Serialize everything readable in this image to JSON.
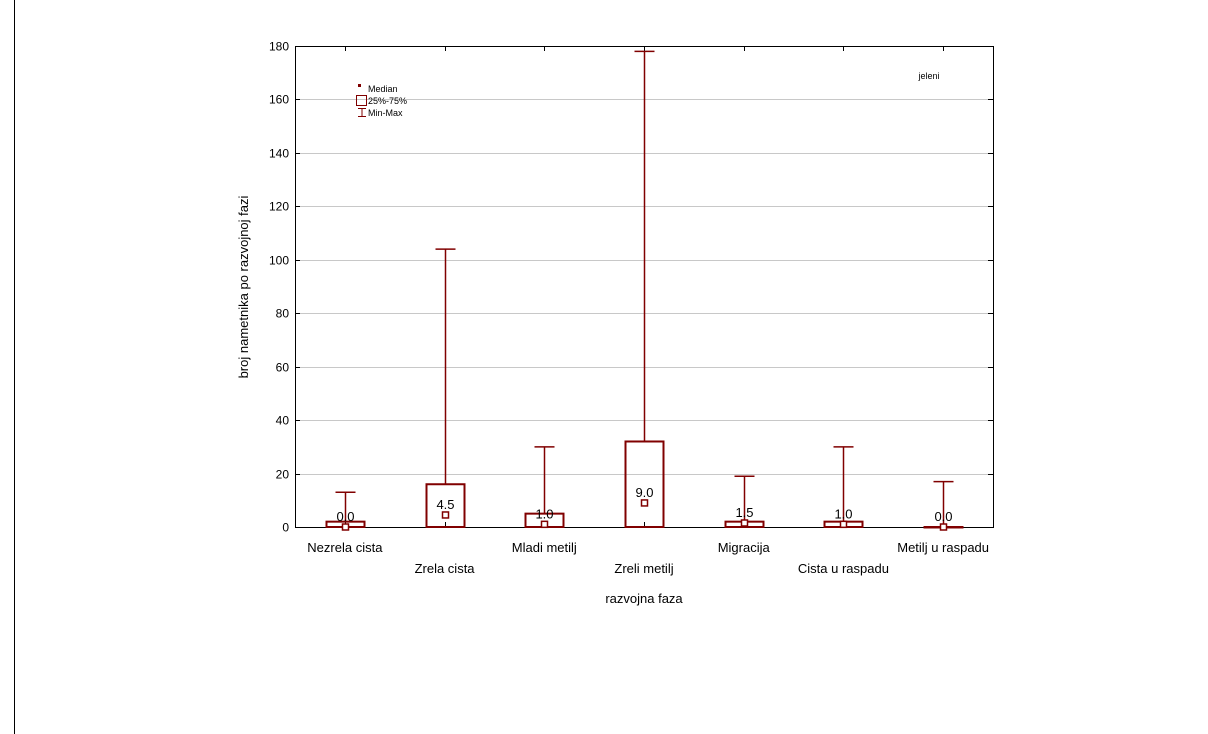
{
  "chart_data": {
    "type": "box",
    "xlabel": "razvojna faza",
    "ylabel": "broj nametnika po razvojnoj fazi",
    "ylim": [
      0,
      180
    ],
    "yticks": [
      0,
      20,
      40,
      60,
      80,
      100,
      120,
      140,
      160,
      180
    ],
    "grid": true,
    "annotation": "jeleni",
    "legend": {
      "position": "top-left",
      "entries": [
        "Median",
        "25%-75%",
        "Min-Max"
      ]
    },
    "colors": {
      "series": "#800000",
      "grid": "#c8c8c8",
      "axis": "#000000"
    },
    "categories": [
      "Nezrela cista",
      "Zrela cista",
      "Mladi metilj",
      "Zreli metilj",
      "Migracija",
      "Cista u raspadu",
      "Metilj u raspadu"
    ],
    "boxes": [
      {
        "category": "Nezrela cista",
        "min": 0,
        "q1": 0,
        "median": 0.0,
        "q3": 2,
        "max": 13,
        "median_label": "0.0"
      },
      {
        "category": "Zrela cista",
        "min": 0,
        "q1": 0,
        "median": 4.5,
        "q3": 16,
        "max": 104,
        "median_label": "4.5"
      },
      {
        "category": "Mladi metilj",
        "min": 0,
        "q1": 0,
        "median": 1.0,
        "q3": 5,
        "max": 30,
        "median_label": "1.0"
      },
      {
        "category": "Zreli metilj",
        "min": 0,
        "q1": 0,
        "median": 9.0,
        "q3": 32,
        "max": 178,
        "median_label": "9.0"
      },
      {
        "category": "Migracija",
        "min": 0,
        "q1": 0,
        "median": 1.5,
        "q3": 2,
        "max": 19,
        "median_label": "1.5"
      },
      {
        "category": "Cista u raspadu",
        "min": 0,
        "q1": 0,
        "median": 1.0,
        "q3": 2,
        "max": 30,
        "median_label": "1.0"
      },
      {
        "category": "Metilj u raspadu",
        "min": 0,
        "q1": 0,
        "median": 0.0,
        "q3": 0,
        "max": 17,
        "median_label": "0.0"
      }
    ]
  }
}
